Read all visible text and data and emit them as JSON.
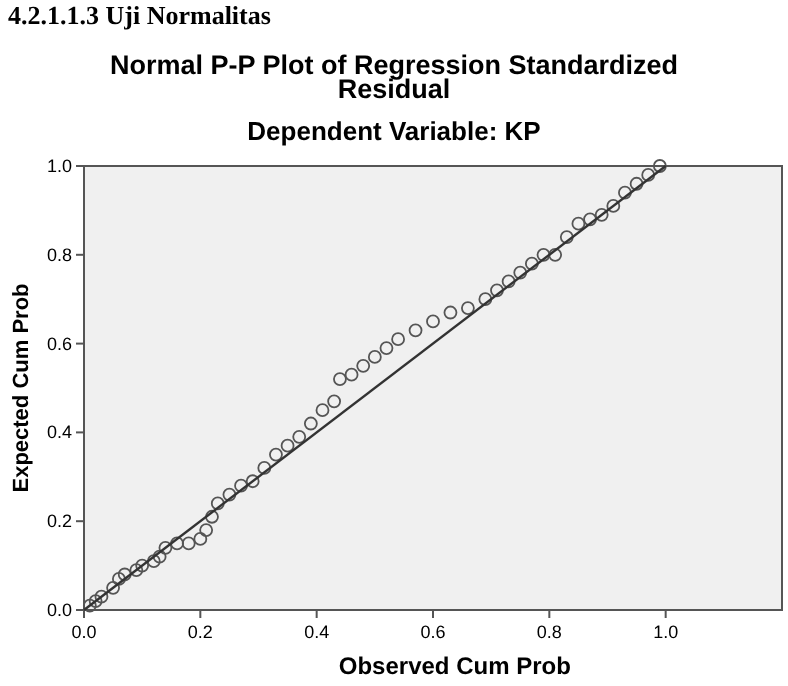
{
  "chart_data": {
    "type": "scatter",
    "title": "Normal P-P Plot of Regression Standardized Residual",
    "subtitle": "Dependent Variable: KP",
    "xlabel": "Observed Cum Prob",
    "ylabel": "Expected Cum Prob",
    "annotations": [
      "4.2.1.1.3 Uji Normalitas"
    ],
    "xlim": [
      0,
      1.2
    ],
    "xticks": [
      {
        "value": 0,
        "label": "0.0"
      },
      {
        "value": 0.2,
        "label": "0.2"
      },
      {
        "value": 0.4,
        "label": "0.4"
      },
      {
        "value": 0.6,
        "label": "0.6"
      },
      {
        "value": 0.8,
        "label": "0.8"
      },
      {
        "value": 1,
        "label": "1.0"
      }
    ],
    "ylim": [
      0,
      1
    ],
    "yticks": [
      {
        "value": 0,
        "label": "0.0"
      },
      {
        "value": 0.2,
        "label": "0.2"
      },
      {
        "value": 0.4,
        "label": "0.4"
      },
      {
        "value": 0.6,
        "label": "0.6"
      },
      {
        "value": 0.8,
        "label": "0.8"
      },
      {
        "value": 1,
        "label": "1.0"
      }
    ],
    "grid": false,
    "series": [
      {
        "marker": "circle",
        "color": "#555555",
        "x": [
          0.01,
          0.02,
          0.03,
          0.05,
          0.06,
          0.07,
          0.09,
          0.1,
          0.12,
          0.13,
          0.14,
          0.16,
          0.18,
          0.2,
          0.21,
          0.22,
          0.23,
          0.25,
          0.27,
          0.29,
          0.31,
          0.33,
          0.35,
          0.37,
          0.39,
          0.41,
          0.43,
          0.44,
          0.46,
          0.48,
          0.5,
          0.52,
          0.54,
          0.57,
          0.6,
          0.63,
          0.66,
          0.69,
          0.71,
          0.73,
          0.75,
          0.77,
          0.79,
          0.81,
          0.83,
          0.85,
          0.87,
          0.89,
          0.91,
          0.93,
          0.95,
          0.97,
          0.99
        ],
        "values": [
          0.01,
          0.02,
          0.03,
          0.05,
          0.07,
          0.08,
          0.09,
          0.1,
          0.11,
          0.12,
          0.14,
          0.15,
          0.15,
          0.16,
          0.18,
          0.21,
          0.24,
          0.26,
          0.28,
          0.29,
          0.32,
          0.35,
          0.37,
          0.39,
          0.42,
          0.45,
          0.47,
          0.52,
          0.53,
          0.55,
          0.57,
          0.59,
          0.61,
          0.63,
          0.65,
          0.67,
          0.68,
          0.7,
          0.72,
          0.74,
          0.76,
          0.78,
          0.8,
          0.8,
          0.84,
          0.87,
          0.88,
          0.89,
          0.91,
          0.94,
          0.96,
          0.98,
          1.0
        ]
      },
      {
        "type": "line",
        "color": "#333333",
        "x": [
          0,
          1
        ],
        "values": [
          0,
          1
        ]
      }
    ]
  }
}
